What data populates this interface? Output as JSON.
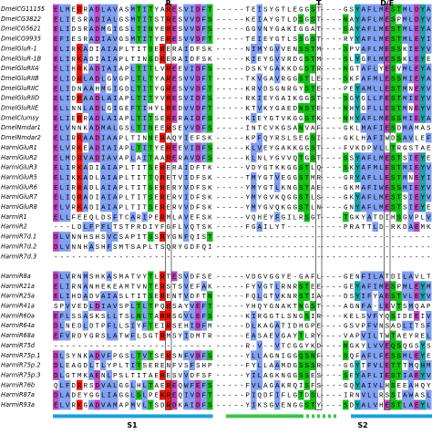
{
  "column_labels": [
    "R",
    "T",
    "D/E"
  ],
  "domains": [
    "S1",
    "S2"
  ],
  "rows": [
    {
      "name": "DmelCG11155",
      "segments": [
        "ELMERRADLAVASMTITYARESVIDFT",
        "-----TEISYGTLEGGST",
        "----GSYAFLMESTMLDYA"
      ]
    },
    {
      "name": "DmelCG3822",
      "segments": [
        "ELIESRADIALGSMTITSTRESVVDFS",
        "-----KEIAYGTLDSGST",
        "----NAYAFLMESPMLDYV"
      ]
    },
    {
      "name": "DmelCG5621",
      "segments": [
        "ELIDSRADMGIGSLTINYERESVVDFS",
        "-----GGVNYGAKIGGAT",
        "----SAYAFLMESTMLEYA"
      ]
    },
    {
      "name": "DmelCG9935",
      "segments": [
        "EFIESRADIAVGSMTITYERESVVDFT",
        "-----TEIEYGTLSSGST",
        "----RYYAFLMESTMLEYI"
      ]
    },
    {
      "name": "DmelGluR-1",
      "segments": [
        "ELIRKADIAIAPLTITSERERAIDFSK",
        "-----NIMYGVVENSSTM",
        "----SPVAFLMESSKIEYV"
      ]
    },
    {
      "name": "DmelGluR-1B",
      "segments": [
        "ELIRKADIAIAPLTINSDRERAIDFSK",
        "-----KIEYGVVRDGSTM",
        "----SLYGFLMESSKLEYE"
      ]
    },
    {
      "name": "DmelGluRIIA",
      "segments": [
        "ELIHRKADIAIAPLTITLVREEVIDFS",
        "-----DSKYGAKKDGSTR",
        "----NGTAFLYESVMLEYA"
      ]
    },
    {
      "name": "DmelGluRIIB",
      "segments": [
        "ELIDRLADLGVGPLTLTYARESVVDFT",
        "-----TKVGAVRGGSTLE",
        "----SKFAFMLESSMIEYA"
      ]
    },
    {
      "name": "DmelGluRIIC",
      "segments": [
        "ELIDNAAHMGIGDLTITYGRESVVDFT",
        "-----KRVDSGNRGYSTE",
        "----PEYAMLLESTMNEYV"
      ]
    },
    {
      "name": "DmelGluRIID",
      "segments": [
        "ELIDRAADLAIAPLTITYVRESVIDFS",
        "-----RKIEYGAIKGGST",
        "----SGYGLLFESTMIEYV"
      ]
    },
    {
      "name": "DmelGluRIIE",
      "segments": [
        "ELLNNLADLGIGEFTIHYLREDVVDFT",
        "-----KTVKYGAEDNSTE",
        "----NHYGFLLESTMNEYV"
      ]
    },
    {
      "name": "DmelClumsy",
      "segments": [
        "ELIERRADLAIAPLTITSERERAIDFS",
        "-----KIEYGTVKGGSTK",
        "----NHYAFLMESSMIEYA"
      ]
    },
    {
      "name": "DmelNmdar1",
      "segments": [
        "ELVNNKADMALGSLTINEERSEVVDFS",
        "-----INTCVKGSANVAF",
        "----GKLMAFIESDMAMAS"
      ]
    },
    {
      "name": "DmelNmdar2",
      "segments": [
        "ELIRRAADIAAPLTINNERAQYIEFSK",
        "-----KPFQYRSLSEGSI",
        "----GKLHAFIWDSAVLEF"
      ]
    },
    {
      "name": "HarmiGluR1",
      "segments": [
        "ELVRKEADIAIAPLTITYEREEVIDFS",
        "-----KLVEYGAKKGGST",
        "----FVKDPVLLTRGSTAE"
      ]
    },
    {
      "name": "HarmiGluR2",
      "segments": [
        "ELMDRVADIAVAPLAITAARERAVDFS",
        "-----KLNLYGVVQTGST",
        "----SSYAFLMESTSIEYE"
      ]
    },
    {
      "name": "HarmiGluR3",
      "segments": [
        "ELIRKADIAIAPLTITSERERAIDFTK",
        "-----VDYGTKKGGSTLQ",
        "----SKYAFMLESTMIEYV"
      ]
    },
    {
      "name": "HarmiGluR5",
      "segments": [
        "ELIKKADLAIAPLTITTQRETVIDFSK",
        "-----TMYGTVEGGSTMR",
        "----GRYAFLLESTMNEYI"
      ]
    },
    {
      "name": "HarmiGluR6",
      "segments": [
        "ELIRRADLAIAPLTITSERERYVDFSK",
        "-----YMYGTLKNGSTAE",
        "----GKMAFIWESSMIEYV"
      ]
    },
    {
      "name": "HarmiGluR7",
      "segments": [
        "ELIQRADIAIAPLTITSERERVIDFSK",
        "-----YMYGVKQGGSTLS",
        "----GKYAFLMESTSIEYV"
      ]
    },
    {
      "name": "HarmiGluR8",
      "segments": [
        "ELVRKADIAIAPLTITSERERVVDFSK",
        "-----YMYGVQKGGSTLN",
        "----GNYAFLMESTSIEYE"
      ]
    },
    {
      "name": "HarmiR1",
      "segments": [
        "ELLFEEQLDSFTCARIPERMLAVEFSK",
        "-----VQHEYFGILRSGT",
        "----TGKYATDIHSGVPLV"
      ]
    },
    {
      "name": "HarmiR2",
      "segments": [
        "---LDLFPFLTSTPRDIYFGFLVQTSK",
        "-----FGAILYT------",
        "----PRATTLD-RKDAEMK"
      ]
    },
    {
      "name": "HarmiR7d.1",
      "segments": [
        "DLVNNHSHSVCSAPITSSRYGNFQIST",
        "------------------",
        "-------------------"
      ]
    },
    {
      "name": "HarmiR7d.2",
      "segments": [
        "DLVNNHASHFSMTSAPLTSQRYGDFQI",
        "------------------",
        "-------------------"
      ]
    },
    {
      "name": "HarmiR7d.3",
      "segments": [
        "---------------------------",
        "------------------",
        "-------------------"
      ]
    },
    {
      "name": "HarmiR8a",
      "segments": [
        "DLVRNMSHKASMATVYTLRTESVDFSE",
        "-----VDGVGGYE-GAFL",
        "----GENFILATDILAVLT"
      ]
    },
    {
      "name": "HarmiR21a",
      "segments": [
        "ELIRNANHEKEAMTVNTERSTSVEFAK",
        "-----FYVGTLRNRSTEE",
        "----GEYAFIMESPMLEYM"
      ]
    },
    {
      "name": "HarmiR25a",
      "segments": [
        "ELIHDADVAIASLTITSERENTVDFTN",
        "-----FQLGTVKNRSTIA",
        "----DSYIFYAESTVLEYV"
      ]
    },
    {
      "name": "HarmiR41a",
      "segments": [
        "SPVVEDLDIAVSPLTLTPQRSAYVEFT",
        "-----YHQYGNAKTNGST",
        "----AGNFA-LEVTSMQAP"
      ]
    },
    {
      "name": "HarmiR60a",
      "segments": [
        "EFLSSASKSLLTSLNLTARRSGVLEFS",
        "-----KIRGGTLSNGSIR",
        "----KELSVFYQSIDEEIV"
      ]
    },
    {
      "name": "HarmiR64a",
      "segments": [
        "DLNEDLDTPFLLSIYFTEIRSEHIDFM",
        "-----DLKAGATIDHGPE",
        "----GSVPFVNSADLITSF"
      ]
    },
    {
      "name": "HarmiR68a",
      "segments": [
        "EFVRDYGRSLATWFLSGTRMSYIDMTR",
        "-----EASAEVGAYTLRY",
        "----VAPVILTWTAEYREL"
      ]
    },
    {
      "name": "HarmiR75d",
      "segments": [
        "---------------------------",
        "-----R-V--VTCGGYKD",
        "----NGKYLVVEQSQGSYS"
      ]
    },
    {
      "name": "HarmiR75p.1",
      "segments": [
        "DLSYNKADVFPGSLTVTSERSNFVDFS",
        "-----YLLAGNIGGQSNF",
        "----SQFAFLFESSMLEYE"
      ]
    },
    {
      "name": "HarmiR75p.2",
      "segments": [
        "DLEAGDLTLYPLTITSERENFVSFSHP",
        "-----FYLLAAMDGSSSR",
        "----GGYTFVLETTTMQHM"
      ]
    },
    {
      "name": "HarmiR75p.3",
      "segments": [
        "DLGTMKAENLPSLTITAERESVVDFSF",
        "-----YILAGKNGGSSES",
        "----SEYAFLIESTIAEYV"
      ]
    },
    {
      "name": "HarmiR76b",
      "segments": [
        "QLFDRRSDVALGGLHLTAEREQWFEFS",
        "-----FVLAGAKRQISFS",
        "----GQYAIVLHSEEAHQY"
      ]
    },
    {
      "name": "HarmiR87a",
      "segments": [
        "DLADEYGGLIAGGLSLPEKREQIVDFT",
        "-----PIQDFIFLGTDSL",
        "----IRNVLLRSSIAWASL"
      ]
    },
    {
      "name": "HarmiR93a",
      "segments": [
        "ELVRKGADVAMAPMVLTSDRDKAIDFS",
        "-----YIKSGVENGGSTY",
        "----SDYALVHESTLAEYL"
      ]
    }
  ]
}
